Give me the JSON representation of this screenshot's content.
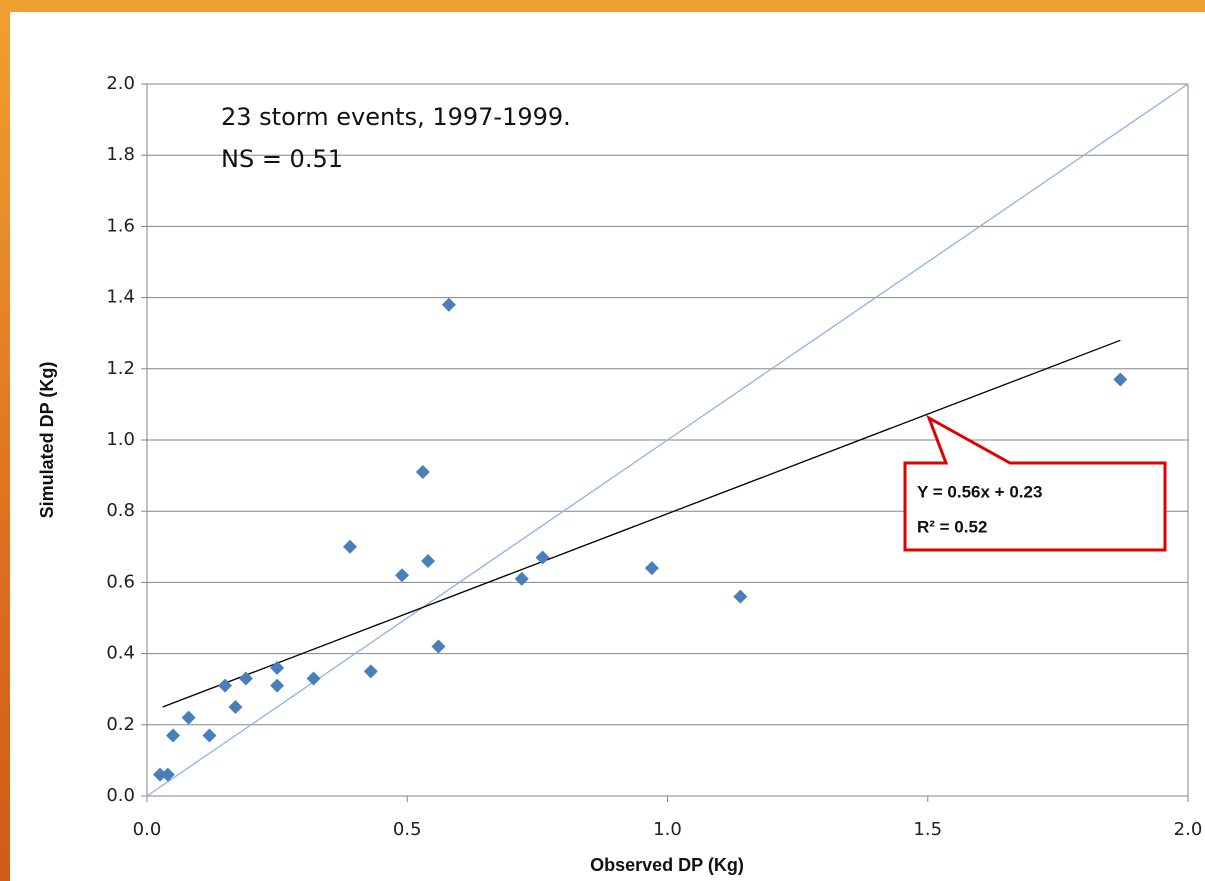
{
  "chart_data": {
    "type": "scatter",
    "x_label": "Observed DP (Kg)",
    "y_label": "Simulated DP (Kg)",
    "annotations": [
      "23 storm events, 1997-1999.",
      "NS = 0.51"
    ],
    "trend_equation": "Y = 0.56x + 0.23",
    "trend_r2": "R² = 0.52",
    "series": [
      {
        "color": "#4a7ebb",
        "x": [
          0.025,
          0.04,
          0.05,
          0.08,
          0.12,
          0.15,
          0.17,
          0.19,
          0.25,
          0.25,
          0.32,
          0.39,
          0.43,
          0.49,
          0.53,
          0.54,
          0.56,
          0.58,
          0.72,
          0.76,
          0.97,
          1.14,
          1.87
        ],
        "values": [
          0.06,
          0.06,
          0.17,
          0.22,
          0.17,
          0.31,
          0.25,
          0.33,
          0.31,
          0.36,
          0.33,
          0.7,
          0.35,
          0.62,
          0.91,
          0.66,
          0.42,
          1.38,
          0.61,
          0.67,
          0.64,
          0.56,
          1.17
        ]
      }
    ],
    "reference_line": {
      "color": "#8db3e2",
      "x": [
        0,
        2
      ],
      "values": [
        0,
        2
      ]
    },
    "trendline": {
      "color": "#000000",
      "x": [
        0.03,
        1.87
      ],
      "values": [
        0.25,
        1.28
      ]
    },
    "xlim": [
      0,
      2
    ],
    "ylim": [
      0,
      2
    ],
    "xticks": [
      {
        "value": 0,
        "label": "0.0"
      },
      {
        "value": 0.5,
        "label": "0.5"
      },
      {
        "value": 1,
        "label": "1.0"
      },
      {
        "value": 1.5,
        "label": "1.5"
      },
      {
        "value": 2,
        "label": "2.0"
      }
    ],
    "yticks": [
      {
        "value": 0,
        "label": "0.0"
      },
      {
        "value": 0.2,
        "label": "0.2"
      },
      {
        "value": 0.4,
        "label": "0.4"
      },
      {
        "value": 0.6,
        "label": "0.6"
      },
      {
        "value": 0.8,
        "label": "0.8"
      },
      {
        "value": 1,
        "label": "1.0"
      },
      {
        "value": 1.2,
        "label": "1.2"
      },
      {
        "value": 1.4,
        "label": "1.4"
      },
      {
        "value": 1.6,
        "label": "1.6"
      },
      {
        "value": 1.8,
        "label": "1.8"
      },
      {
        "value": 2,
        "label": "2.0"
      }
    ],
    "grid": true
  }
}
